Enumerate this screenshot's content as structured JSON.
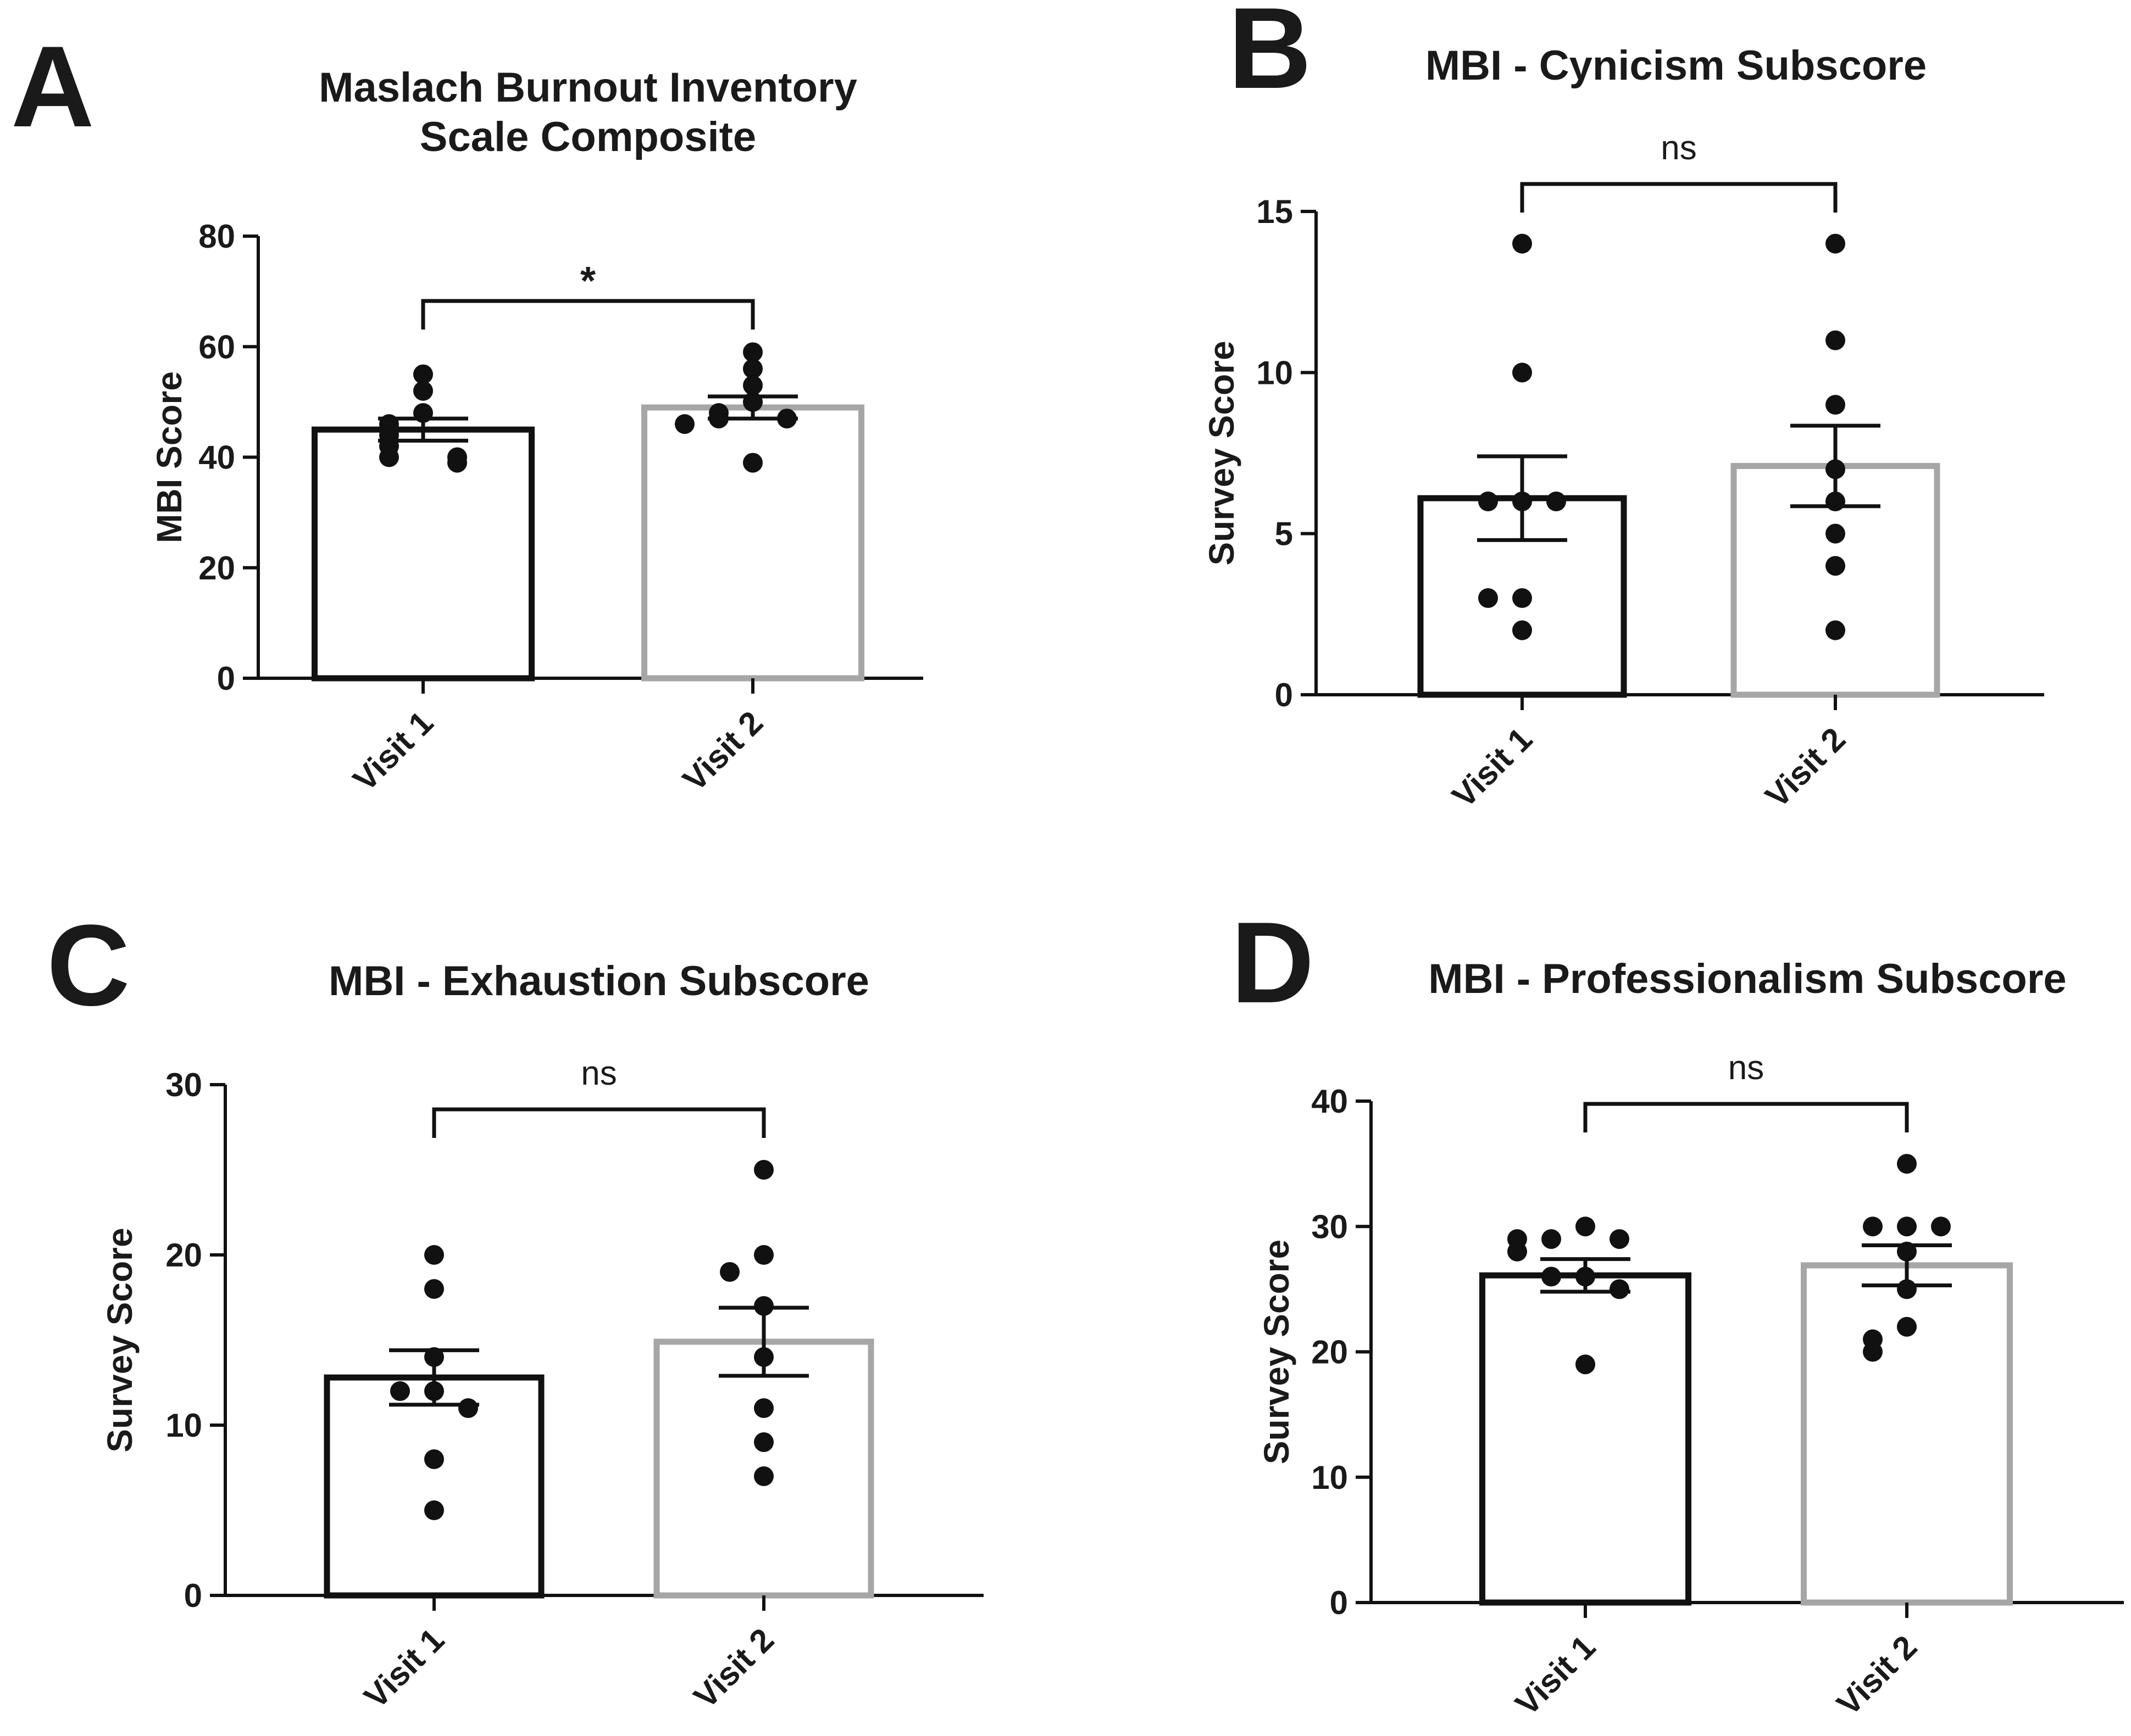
{
  "colors": {
    "visit1": "#111111",
    "visit2": "#a6a6a6",
    "points": "#111111",
    "axis": "#111111"
  },
  "chart_data": [
    {
      "panel": "A",
      "type": "bar",
      "title": [
        "Maslach Burnout Inventory",
        "Scale Composite"
      ],
      "ylabel": "MBI Score",
      "xlabel": "",
      "categories": [
        "Visit 1",
        "Visit 2"
      ],
      "ylim": [
        0,
        80
      ],
      "yticks": [
        0,
        20,
        40,
        60,
        80
      ],
      "means": [
        45,
        49
      ],
      "sem": [
        2,
        2
      ],
      "points": [
        [
          55,
          52,
          48,
          46,
          44,
          42,
          40,
          40,
          39
        ],
        [
          59,
          56,
          53,
          50,
          48,
          47,
          47,
          46,
          39
        ]
      ],
      "significance": "*"
    },
    {
      "panel": "B",
      "type": "bar",
      "title": [
        "MBI - Cynicism Subscore"
      ],
      "ylabel": "Survey Score",
      "xlabel": "",
      "categories": [
        "Visit 1",
        "Visit 2"
      ],
      "ylim": [
        0,
        15
      ],
      "yticks": [
        0,
        5,
        10,
        15
      ],
      "means": [
        6.1,
        7.1
      ],
      "sem": [
        1.3,
        1.25
      ],
      "points": [
        [
          14,
          10,
          6,
          6,
          6,
          3,
          3,
          2
        ],
        [
          14,
          11,
          9,
          7,
          6,
          5,
          4,
          2
        ]
      ],
      "significance": "ns"
    },
    {
      "panel": "C",
      "type": "bar",
      "title": [
        "MBI - Exhaustion Subscore"
      ],
      "ylabel": "Survey Score",
      "xlabel": "",
      "categories": [
        "Visit 1",
        "Visit 2"
      ],
      "ylim": [
        0,
        30
      ],
      "yticks": [
        0,
        10,
        20,
        30
      ],
      "means": [
        12.8,
        14.9
      ],
      "sem": [
        1.6,
        2.0
      ],
      "points": [
        [
          20,
          18,
          14,
          12,
          12,
          11,
          8,
          5
        ],
        [
          25,
          20,
          19,
          17,
          14,
          11,
          9,
          7
        ]
      ],
      "significance": "ns"
    },
    {
      "panel": "D",
      "type": "bar",
      "title": [
        "MBI - Professionalism Subscore"
      ],
      "ylabel": "Survey Score",
      "xlabel": "",
      "categories": [
        "Visit 1",
        "Visit 2"
      ],
      "ylim": [
        0,
        40
      ],
      "yticks": [
        0,
        10,
        20,
        30,
        40
      ],
      "means": [
        26.1,
        26.9
      ],
      "sem": [
        1.3,
        1.6
      ],
      "points": [
        [
          30,
          29,
          29,
          29,
          28,
          26,
          26,
          25,
          19
        ],
        [
          35,
          30,
          30,
          30,
          28,
          25,
          22,
          21,
          20
        ]
      ],
      "significance": "ns"
    }
  ]
}
